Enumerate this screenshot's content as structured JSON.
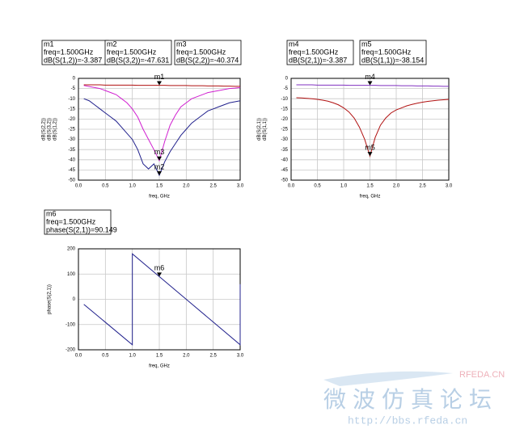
{
  "chart_data": [
    {
      "type": "line",
      "xlabel": "freq, GHz",
      "xlim": [
        0,
        3
      ],
      "ylim": [
        -50,
        0
      ],
      "grid": true,
      "xticks": [
        {
          "value": 0,
          "label": "0.0"
        },
        {
          "value": 0.5,
          "label": "0.5"
        },
        {
          "value": 1,
          "label": "1.0"
        },
        {
          "value": 1.5,
          "label": "1.5"
        },
        {
          "value": 2,
          "label": "2.0"
        },
        {
          "value": 2.5,
          "label": "2.5"
        },
        {
          "value": 3,
          "label": "3.0"
        }
      ],
      "yticks": [
        0,
        -5,
        -10,
        -15,
        -20,
        -25,
        -30,
        -35,
        -40,
        -45,
        -50
      ],
      "x": [
        0.1,
        0.2,
        0.3,
        0.4,
        0.5,
        0.6,
        0.7,
        0.8,
        0.9,
        1.0,
        1.1,
        1.2,
        1.3,
        1.4,
        1.5,
        1.6,
        1.7,
        1.8,
        1.9,
        2.0,
        2.1,
        2.2,
        2.3,
        2.4,
        2.5,
        2.6,
        2.7,
        2.8,
        2.9,
        3.0
      ],
      "series": [
        {
          "name": "dB(S(2,2))",
          "color": "#d020d0",
          "values": [
            -3.5,
            -4,
            -4.5,
            -5,
            -6,
            -7,
            -8,
            -10,
            -12,
            -15,
            -19,
            -25,
            -30,
            -35,
            -40.4,
            -31,
            -23,
            -18,
            -14,
            -12,
            -10,
            -9,
            -8,
            -7,
            -6.5,
            -6,
            -5.5,
            -5,
            -4.8,
            -4.5
          ]
        },
        {
          "name": "dB(S(3,2))",
          "color": "#20208c",
          "values": [
            -10,
            -11,
            -13,
            -15,
            -17,
            -19,
            -21,
            -24,
            -27,
            -30,
            -35,
            -42,
            -44.5,
            -42,
            -47.6,
            -41,
            -36,
            -32,
            -28,
            -25,
            -22,
            -20,
            -18,
            -16,
            -15,
            -14,
            -13,
            -12,
            -11.5,
            -11
          ]
        },
        {
          "name": "dB(S(1,2))",
          "color": "#b01010",
          "values": [
            -3.2,
            -3.2,
            -3.2,
            -3.2,
            -3.3,
            -3.3,
            -3.3,
            -3.3,
            -3.3,
            -3.3,
            -3.4,
            -3.4,
            -3.4,
            -3.4,
            -3.4,
            -3.4,
            -3.5,
            -3.5,
            -3.5,
            -3.5,
            -3.6,
            -3.6,
            -3.6,
            -3.7,
            -3.7,
            -3.7,
            -3.8,
            -3.8,
            -3.9,
            -3.9
          ]
        }
      ],
      "markers": [
        {
          "name": "m1",
          "freq": "freq=1.500GHz",
          "readout": "dB(S(1,2))=-3.387",
          "x": 1.5,
          "y": -3.387
        },
        {
          "name": "m2",
          "freq": "freq=1.500GHz",
          "readout": "dB(S(3,2))=-47.631",
          "x": 1.5,
          "y": -47.631
        },
        {
          "name": "m3",
          "freq": "freq=1.500GHz",
          "readout": "dB(S(2,2))=-40.374",
          "x": 1.5,
          "y": -40.374
        }
      ]
    },
    {
      "type": "line",
      "xlabel": "freq, GHz",
      "xlim": [
        0,
        3
      ],
      "ylim": [
        -50,
        0
      ],
      "grid": true,
      "xticks": [
        {
          "value": 0,
          "label": "0.0"
        },
        {
          "value": 0.5,
          "label": "0.5"
        },
        {
          "value": 1,
          "label": "1.0"
        },
        {
          "value": 1.5,
          "label": "1.5"
        },
        {
          "value": 2,
          "label": "2.0"
        },
        {
          "value": 2.5,
          "label": "2.5"
        },
        {
          "value": 3,
          "label": "3.0"
        }
      ],
      "yticks": [
        0,
        -5,
        -10,
        -15,
        -20,
        -25,
        -30,
        -35,
        -40,
        -45,
        -50
      ],
      "x": [
        0.1,
        0.2,
        0.3,
        0.4,
        0.5,
        0.6,
        0.7,
        0.8,
        0.9,
        1.0,
        1.1,
        1.2,
        1.3,
        1.4,
        1.5,
        1.6,
        1.7,
        1.8,
        1.9,
        2.0,
        2.1,
        2.2,
        2.3,
        2.4,
        2.5,
        2.6,
        2.7,
        2.8,
        2.9,
        3.0
      ],
      "series": [
        {
          "name": "dB(S(2,1))",
          "color": "#8030c0",
          "values": [
            -3.2,
            -3.2,
            -3.2,
            -3.2,
            -3.3,
            -3.3,
            -3.3,
            -3.3,
            -3.3,
            -3.3,
            -3.4,
            -3.4,
            -3.4,
            -3.4,
            -3.4,
            -3.4,
            -3.5,
            -3.5,
            -3.5,
            -3.5,
            -3.6,
            -3.6,
            -3.6,
            -3.7,
            -3.7,
            -3.7,
            -3.8,
            -3.8,
            -3.9,
            -3.9
          ]
        },
        {
          "name": "dB(S(1,1))",
          "color": "#b01010",
          "values": [
            -9.5,
            -9.6,
            -9.8,
            -10,
            -10.3,
            -10.7,
            -11.2,
            -12,
            -13,
            -14.5,
            -16.5,
            -19.5,
            -24,
            -30,
            -38.2,
            -29,
            -23,
            -19.5,
            -17,
            -15.5,
            -14.5,
            -13.5,
            -12.8,
            -12.2,
            -11.7,
            -11.3,
            -11,
            -10.7,
            -10.5,
            -10.3
          ]
        }
      ],
      "markers": [
        {
          "name": "m4",
          "freq": "freq=1.500GHz",
          "readout": "dB(S(2,1))=-3.387",
          "x": 1.5,
          "y": -3.387
        },
        {
          "name": "m5",
          "freq": "freq=1.500GHz",
          "readout": "dB(S(1,1))=-38.154",
          "x": 1.5,
          "y": -38.154
        }
      ]
    },
    {
      "type": "line",
      "xlabel": "freq, GHz",
      "xlim": [
        0,
        3
      ],
      "ylim": [
        -200,
        200
      ],
      "grid": true,
      "xticks": [
        {
          "value": 0,
          "label": "0.0"
        },
        {
          "value": 0.5,
          "label": "0.5"
        },
        {
          "value": 1,
          "label": "1.0"
        },
        {
          "value": 1.5,
          "label": "1.5"
        },
        {
          "value": 2,
          "label": "2.0"
        },
        {
          "value": 2.5,
          "label": "2.5"
        },
        {
          "value": 3,
          "label": "3.0"
        }
      ],
      "yticks": [
        200,
        100,
        0,
        -100,
        -200
      ],
      "x": [
        0.1,
        0.5,
        1.0,
        1.0,
        1.5,
        2.0,
        2.5,
        3.0,
        3.0
      ],
      "series": [
        {
          "name": "phase(S(2,1))",
          "color": "#20208c",
          "values": [
            -20,
            -91,
            -180,
            180,
            90.149,
            0,
            -90,
            -180,
            60
          ]
        }
      ],
      "markers": [
        {
          "name": "m6",
          "freq": "freq=1.500GHz",
          "readout": "phase(S(2,1))=90.149",
          "x": 1.5,
          "y": 90.149
        }
      ]
    }
  ],
  "watermark": {
    "brand": "RFEDA.CN",
    "forum": "微波仿真论坛",
    "url": "http://bbs.rfeda.cn"
  }
}
